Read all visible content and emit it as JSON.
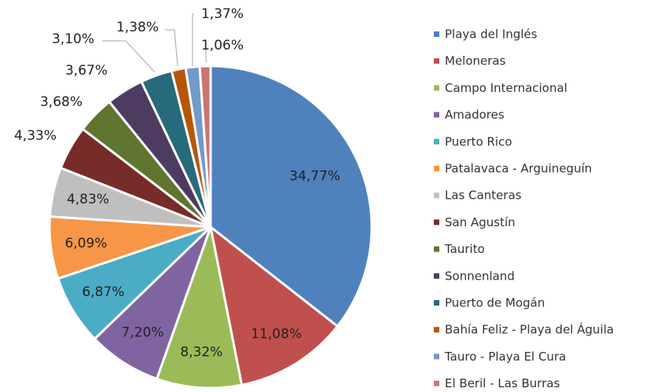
{
  "chart_data": {
    "type": "pie",
    "categories": [
      "Playa del Inglés",
      "Meloneras",
      "Campo Internacional",
      "Amadores",
      "Puerto Rico",
      "Patalavaca - Arguineguín",
      "Las Canteras",
      "San Agustín",
      "Taurito",
      "Sonnenland",
      "Puerto de Mogán",
      "Bahía Feliz - Playa del Águila",
      "Tauro - Playa El Cura",
      "El Beril - Las Burras"
    ],
    "values": [
      34.77,
      11.08,
      8.32,
      7.2,
      6.87,
      6.09,
      4.83,
      4.33,
      3.68,
      3.67,
      3.1,
      1.38,
      1.37,
      1.06
    ],
    "value_labels": [
      "34,77%",
      "11,08%",
      "8,32%",
      "7,20%",
      "6,87%",
      "6,09%",
      "4,83%",
      "4,33%",
      "3,68%",
      "3,67%",
      "3,10%",
      "1,38%",
      "1,37%",
      "1,06%"
    ],
    "colors": [
      "#4f81bd",
      "#c0504d",
      "#9bbb59",
      "#8064a2",
      "#4bacc6",
      "#f79646",
      "#bfbfbf",
      "#772c2a",
      "#5f7530",
      "#4d3b62",
      "#276a7c",
      "#b65708",
      "#729aca",
      "#cd7371"
    ],
    "legend": "right"
  }
}
